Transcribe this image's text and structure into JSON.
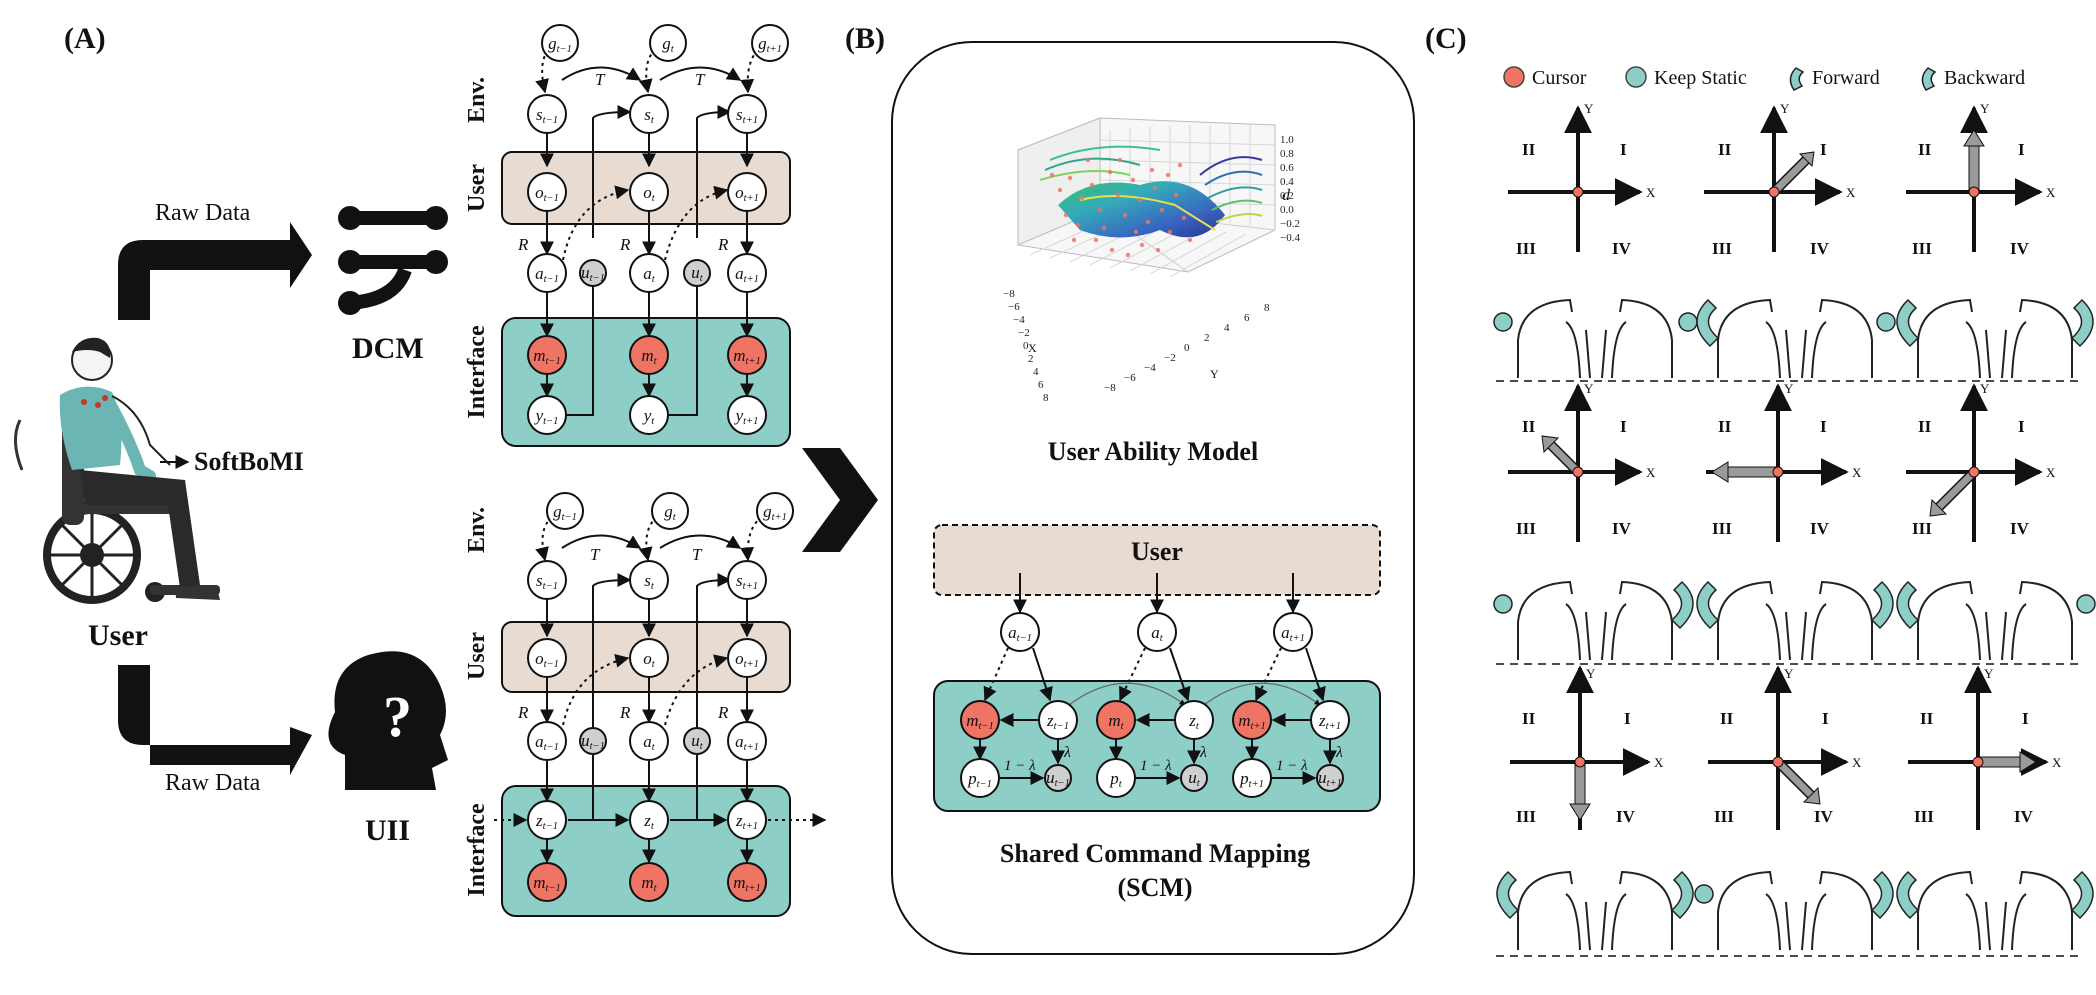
{
  "panels": {
    "a": "(A)",
    "b": "(B)",
    "c": "(C)"
  },
  "panel_a": {
    "raw_data_top": "Raw Data",
    "raw_data_bottom": "Raw Data",
    "dcm": "DCM",
    "uii": "UII",
    "softbomi": "SoftBoMI",
    "user": "User",
    "row_env": "Env.",
    "row_user": "User",
    "row_interface": "Interface",
    "transition_T": "T",
    "reward_R": "R",
    "nodes": {
      "g": [
        "g_{t-1}",
        "g_t",
        "g_{t+1}"
      ],
      "s": [
        "s_{t-1}",
        "s_t",
        "s_{t+1}"
      ],
      "o": [
        "o_{t-1}",
        "o_t",
        "o_{t+1}"
      ],
      "a": [
        "a_{t-1}",
        "a_t",
        "a_{t+1}"
      ],
      "u": [
        "u_{t-1}",
        "u_t"
      ],
      "m": [
        "m_{t-1}",
        "m_t",
        "m_{t+1}"
      ],
      "y": [
        "y_{t-1}",
        "y_t",
        "y_{t+1}"
      ],
      "z": [
        "z_{t-1}",
        "z_t",
        "z_{t+1}"
      ]
    }
  },
  "panel_b": {
    "user_ability_model": "User Ability Model",
    "user_box": "User",
    "shared_command_mapping": "Shared Command Mapping",
    "scm": "(SCM)",
    "lambda": "λ",
    "one_minus_lambda": "1 − λ",
    "plot_axes": {
      "x": "X",
      "y": "Y",
      "d": "d",
      "x_ticks": [
        "−8",
        "−6",
        "−4",
        "−2",
        "0",
        "2",
        "4",
        "6",
        "8"
      ],
      "y_ticks": [
        "−8",
        "−6",
        "−4",
        "−2",
        "0",
        "2",
        "4",
        "6",
        "8"
      ],
      "d_ticks": [
        "1.0",
        "0.8",
        "0.6",
        "0.4",
        "0.2",
        "0.0",
        "−0.2",
        "−0.4"
      ]
    },
    "nodes": {
      "a": [
        "a_{t-1}",
        "a_t",
        "a_{t+1}"
      ],
      "m": [
        "m_{t-1}",
        "m_t",
        "m_{t+1}"
      ],
      "z": [
        "z_{t-1}",
        "z_t",
        "z_{t+1}"
      ],
      "p": [
        "p_{t-1}",
        "p_t",
        "p_{t+1}"
      ],
      "u": [
        "u_{t-1}",
        "u_t",
        "u_{t+1}"
      ]
    }
  },
  "panel_c": {
    "legend": {
      "cursor": "Cursor",
      "keep_static": "Keep Static",
      "forward": "Forward",
      "backward": "Backward"
    },
    "quadrants": [
      "I",
      "II",
      "III",
      "IV"
    ],
    "axis_x": "X",
    "axis_y": "Y"
  },
  "colors": {
    "cursor": "#f07464",
    "teal": "#8dcfc6",
    "beige": "#e8dcd2",
    "gray_node": "#cfcfcf",
    "black": "#111111"
  }
}
